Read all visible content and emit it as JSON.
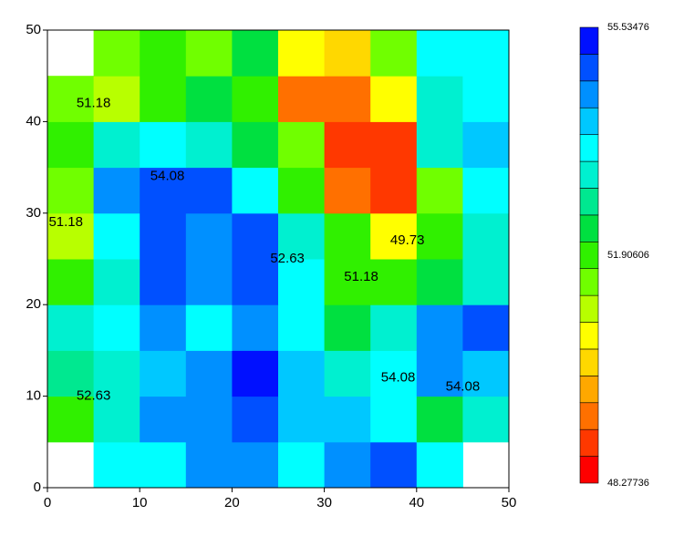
{
  "chart_data": {
    "type": "heatmap",
    "x": [
      2.5,
      7.5,
      12.5,
      17.5,
      22.5,
      27.5,
      32.5,
      37.5,
      42.5,
      47.5
    ],
    "y": [
      2.5,
      7.5,
      12.5,
      17.5,
      22.5,
      27.5,
      32.5,
      37.5,
      42.5,
      47.5
    ],
    "z": [
      [
        null,
        53.5,
        53.6,
        54.4,
        54.3,
        53.8,
        54.5,
        54.7,
        53.5,
        null
      ],
      [
        52.0,
        53.0,
        54.3,
        54.5,
        55.0,
        53.9,
        54.2,
        53.5,
        52.5,
        53.3
      ],
      [
        52.8,
        53.3,
        54.2,
        54.6,
        55.3,
        53.9,
        53.3,
        53.8,
        54.3,
        54.2
      ],
      [
        53.0,
        53.5,
        54.3,
        53.8,
        54.4,
        53.6,
        52.5,
        53.0,
        54.3,
        54.8
      ],
      [
        51.8,
        53.3,
        55.1,
        54.4,
        55.0,
        53.5,
        52.0,
        51.8,
        52.2,
        53.0
      ],
      [
        51.2,
        53.5,
        55.0,
        54.5,
        54.9,
        53.0,
        51.8,
        50.5,
        51.8,
        53.3
      ],
      [
        51.5,
        54.5,
        54.8,
        54.7,
        53.8,
        52.0,
        49.5,
        48.8,
        51.5,
        53.5
      ],
      [
        52.0,
        53.3,
        53.5,
        53.2,
        52.2,
        51.5,
        49.0,
        48.8,
        53.0,
        54.0
      ],
      [
        51.5,
        51.1,
        52.0,
        52.3,
        51.8,
        49.3,
        49.5,
        50.5,
        53.3,
        53.8
      ],
      [
        null,
        51.5,
        51.8,
        51.5,
        52.5,
        50.5,
        50.0,
        51.5,
        53.5,
        53.8
      ]
    ],
    "xlim": [
      0,
      50
    ],
    "ylim": [
      0,
      50
    ],
    "xticks": [
      0,
      10,
      20,
      30,
      40,
      50
    ],
    "yticks": [
      0,
      10,
      20,
      30,
      40,
      50
    ],
    "zlim": [
      48.27736,
      55.53476
    ],
    "colors": [
      "#ff0000",
      "#ff3800",
      "#ff7000",
      "#ffa800",
      "#ffd800",
      "#ffff00",
      "#b8ff00",
      "#70ff00",
      "#30f000",
      "#00e040",
      "#00e890",
      "#00f0d0",
      "#00ffff",
      "#00c8ff",
      "#0090ff",
      "#0050ff",
      "#0010ff"
    ],
    "colorbar_ticks": [
      48.27736,
      51.90606,
      55.53476
    ],
    "annotations": [
      {
        "text": "51.18",
        "x": 5,
        "y": 42
      },
      {
        "text": "54.08",
        "x": 13,
        "y": 34
      },
      {
        "text": "51.18",
        "x": 2,
        "y": 29
      },
      {
        "text": "52.63",
        "x": 26,
        "y": 25
      },
      {
        "text": "49.73",
        "x": 39,
        "y": 27
      },
      {
        "text": "51.18",
        "x": 34,
        "y": 23
      },
      {
        "text": "54.08",
        "x": 38,
        "y": 12
      },
      {
        "text": "54.08",
        "x": 45,
        "y": 11
      },
      {
        "text": "52.63",
        "x": 5,
        "y": 10
      }
    ]
  }
}
